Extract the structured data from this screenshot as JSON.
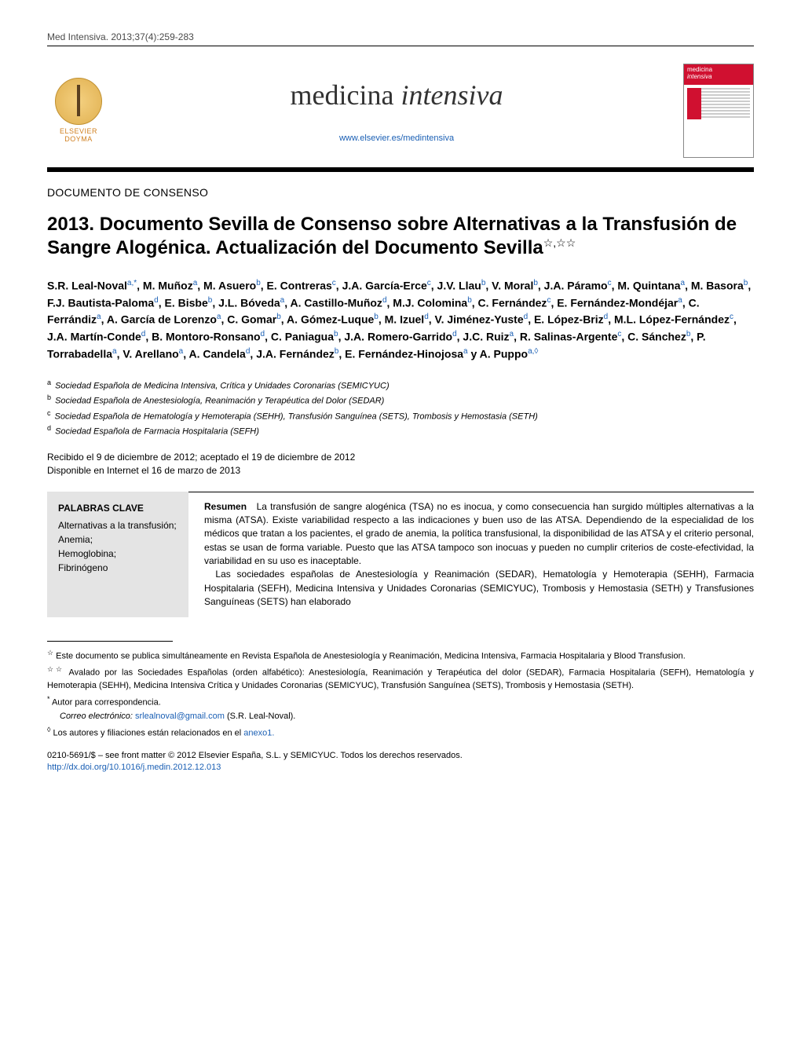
{
  "citation": "Med Intensiva. 2013;37(4):259-283",
  "publisher": {
    "name": "ELSEVIER",
    "imprint": "DOYMA"
  },
  "journal": {
    "name_plain": "medicina ",
    "name_italic": "intensiva",
    "url": "www.elsevier.es/medintensiva"
  },
  "cover_thumb": {
    "title_line1": "medicina",
    "title_line2": "intensiva"
  },
  "section_label": "DOCUMENTO DE CONSENSO",
  "title": "2013. Documento Sevilla de Consenso sobre Alternativas a la Transfusión de Sangre Alogénica. Actualización del Documento Sevilla",
  "title_marks": "☆,☆☆",
  "authors_html": "S.R. Leal-Noval<sup>a,*</sup>, M. Muñoz<sup>a</sup>, M. Asuero<sup>b</sup>, E. Contreras<sup>c</sup>, J.A. García-Erce<sup>c</sup>, J.V. Llau<sup>b</sup>, V. Moral<sup>b</sup>, J.A. Páramo<sup>c</sup>, M. Quintana<sup>a</sup>, M. Basora<sup>b</sup>, F.J. Bautista-Paloma<sup>d</sup>, E. Bisbe<sup>b</sup>, J.L. Bóveda<sup>a</sup>, A. Castillo-Muñoz<sup>d</sup>, M.J. Colomina<sup>b</sup>, C. Fernández<sup>c</sup>, E. Fernández-Mondéjar<sup>a</sup>, C. Ferrándiz<sup>a</sup>, A. García de Lorenzo<sup>a</sup>, C. Gomar<sup>b</sup>, A. Gómez-Luque<sup>b</sup>, M. Izuel<sup>d</sup>, V. Jiménez-Yuste<sup>d</sup>, E. López-Briz<sup>d</sup>, M.L. López-Fernández<sup>c</sup>, J.A. Martín-Conde<sup>d</sup>, B. Montoro-Ronsano<sup>d</sup>, C. Paniagua<sup>b</sup>, J.A. Romero-Garrido<sup>d</sup>, J.C. Ruiz<sup>a</sup>, R. Salinas-Argente<sup>c</sup>, C. Sánchez<sup>b</sup>, P. Torrabadella<sup>a</sup>, V. Arellano<sup>a</sup>, A. Candela<sup>d</sup>, J.A. Fernández<sup>b</sup>, E. Fernández-Hinojosa<sup>a</sup> y A. Puppo<sup>a,◊</sup>",
  "affiliations": [
    {
      "mark": "a",
      "text": "Sociedad Española de Medicina Intensiva, Crítica y Unidades Coronarias (SEMICYUC)"
    },
    {
      "mark": "b",
      "text": "Sociedad Española de Anestesiología, Reanimación y Terapéutica del Dolor (SEDAR)"
    },
    {
      "mark": "c",
      "text": "Sociedad Española de Hematología y Hemoterapia (SEHH), Transfusión Sanguínea (SETS), Trombosis y Hemostasia (SETH)"
    },
    {
      "mark": "d",
      "text": "Sociedad Española de Farmacia Hospitalaria (SEFH)"
    }
  ],
  "dates": {
    "received_accepted": "Recibido el 9 de diciembre de 2012; aceptado el 19 de diciembre de 2012",
    "online": "Disponible en Internet el 16 de marzo de 2013"
  },
  "keywords": {
    "title": "PALABRAS CLAVE",
    "items": [
      "Alternativas a la transfusión;",
      "Anemia;",
      "Hemoglobina;",
      "Fibrinógeno"
    ]
  },
  "abstract": {
    "label": "Resumen",
    "p1": "La transfusión de sangre alogénica (TSA) no es inocua, y como consecuencia han surgido múltiples alternativas a la misma (ATSA). Existe variabilidad respecto a las indicaciones y buen uso de las ATSA. Dependiendo de la especialidad de los médicos que tratan a los pacientes, el grado de anemia, la política transfusional, la disponibilidad de las ATSA y el criterio personal, estas se usan de forma variable. Puesto que las ATSA tampoco son inocuas y pueden no cumplir criterios de coste-efectividad, la variabilidad en su uso es inaceptable.",
    "p2": "Las sociedades españolas de Anestesiología y Reanimación (SEDAR), Hematología y Hemoterapia (SEHH), Farmacia Hospitalaria (SEFH), Medicina Intensiva y Unidades Coronarias (SEMICYUC), Trombosis y Hemostasia (SETH) y Transfusiones Sanguíneas (SETS) han elaborado"
  },
  "footnotes": {
    "star1": "Este documento se publica simultáneamente en Revista Española de Anestesiología y Reanimación, Medicina Intensiva, Farmacia Hospitalaria y Blood Transfusion.",
    "star2": "Avalado por las Sociedades Españolas (orden alfabético): Anestesiología, Reanimación y Terapéutica del dolor (SEDAR), Farmacia Hospitalaria (SEFH), Hematología y Hemoterapia (SEHH), Medicina Intensiva Crítica y Unidades Coronarias (SEMICYUC), Transfusión Sanguínea (SETS), Trombosis y Hemostasia (SETH).",
    "corr_label": "Autor para correspondencia.",
    "email_label": "Correo electrónico:",
    "email": "srlealnoval@gmail.com",
    "email_who": "(S.R. Leal-Noval).",
    "diamond": "Los autores y filiaciones están relacionados en el ",
    "diamond_link": "anexo1."
  },
  "copyright": {
    "line1": "0210-5691/$ – see front matter © 2012 Elsevier España, S.L. y SEMICYUC. Todos los derechos reservados.",
    "doi": "http://dx.doi.org/10.1016/j.medin.2012.12.013"
  },
  "colors": {
    "link": "#1a5fb4",
    "keywords_bg": "#e4e4e4",
    "elsevier": "#d08020",
    "cover_red": "#d01030"
  }
}
